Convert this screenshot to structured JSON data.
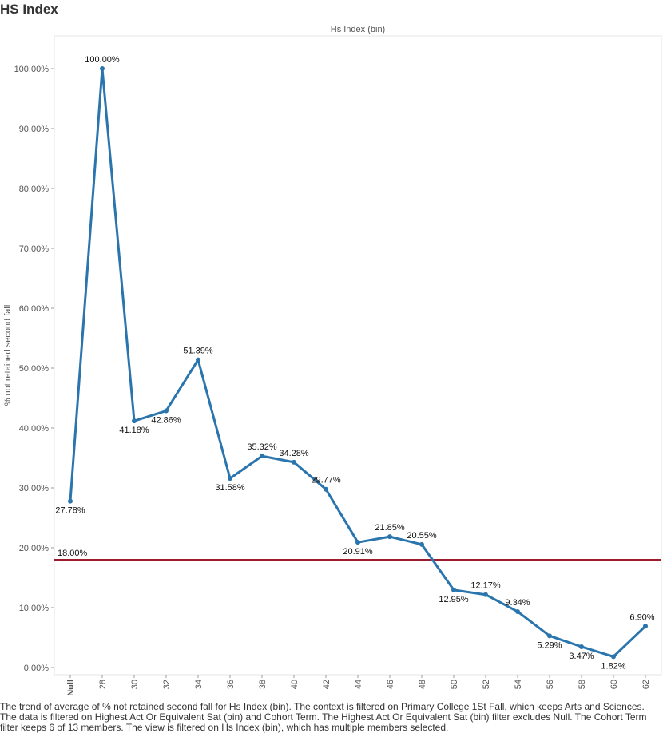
{
  "title": "HS Index",
  "caption": "The trend of average of % not retained second fall for Hs Index (bin). The context is filtered on Primary College 1St Fall, which keeps Arts and Sciences. The data is filtered on Highest Act Or Equivalent Sat (bin) and Cohort Term. The Highest Act Or Equivalent Sat (bin) filter excludes Null. The Cohort Term filter keeps 6 of 13 members. The view is filtered on Hs Index (bin), which has multiple members selected.",
  "colors": {
    "line": "#2a75ad",
    "reference_line": "#9c1b2e",
    "grid": "#e6e6e6",
    "axis": "#999999"
  },
  "chart_data": {
    "type": "line",
    "header": "Hs Index (bin)",
    "ylabel": "% not retained second fall",
    "ylim": [
      0,
      100
    ],
    "y_ticks": [
      "0.00%",
      "10.00%",
      "20.00%",
      "30.00%",
      "40.00%",
      "50.00%",
      "60.00%",
      "70.00%",
      "80.00%",
      "90.00%",
      "100.00%"
    ],
    "categories": [
      "Null",
      "28",
      "30",
      "32",
      "34",
      "36",
      "38",
      "40",
      "42",
      "44",
      "46",
      "48",
      "50",
      "52",
      "54",
      "56",
      "58",
      "60",
      "62"
    ],
    "values": [
      27.78,
      100.0,
      41.18,
      42.86,
      51.39,
      31.58,
      35.32,
      34.28,
      29.77,
      20.91,
      21.85,
      20.55,
      12.95,
      12.17,
      9.34,
      5.29,
      3.47,
      1.82,
      6.9
    ],
    "labels": [
      "27.78%",
      "100.00%",
      "41.18%",
      "42.86%",
      "51.39%",
      "31.58%",
      "35.32%",
      "34.28%",
      "29.77%",
      "20.91%",
      "21.85%",
      "20.55%",
      "12.95%",
      "12.17%",
      "9.34%",
      "5.29%",
      "3.47%",
      "1.82%",
      "6.90%"
    ],
    "label_side": [
      "below",
      "above",
      "below",
      "below",
      "above",
      "below",
      "above",
      "above",
      "above",
      "below",
      "above",
      "above",
      "below",
      "above",
      "above",
      "below",
      "below",
      "below",
      "above"
    ],
    "reference_line": {
      "value": 18.0,
      "label": "18.00%"
    },
    "grid": false,
    "legend": "none"
  }
}
